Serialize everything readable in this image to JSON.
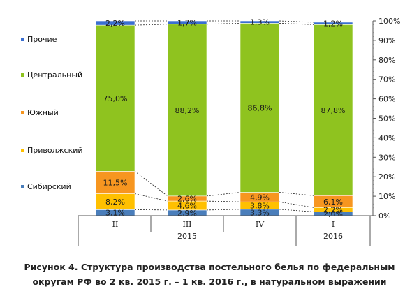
{
  "chart_data": {
    "type": "bar",
    "stacked": true,
    "normalized": true,
    "categories": [
      "II",
      "III",
      "IV",
      "I"
    ],
    "year_groups": [
      {
        "label": "2015",
        "categories": [
          "II",
          "III",
          "IV"
        ]
      },
      {
        "label": "2016",
        "categories": [
          "I"
        ]
      }
    ],
    "series": [
      {
        "name": "Сибирский",
        "color": "#4a7ebb",
        "values": [
          3.1,
          2.9,
          3.3,
          2.0
        ],
        "labels": [
          "3,1%",
          "2,9%",
          "3,3%",
          "2,0%"
        ]
      },
      {
        "name": "Приволжский",
        "color": "#ffc000",
        "values": [
          8.2,
          4.6,
          3.8,
          2.2
        ],
        "labels": [
          "8,2%",
          "4,6%",
          "3,8%",
          "2,2%"
        ]
      },
      {
        "name": "Южный",
        "color": "#f79620",
        "values": [
          11.5,
          2.6,
          4.9,
          6.1
        ],
        "labels": [
          "11,5%",
          "2,6%",
          "4,9%",
          "6,1%"
        ]
      },
      {
        "name": "Центральный",
        "color": "#8fc31f",
        "values": [
          75.0,
          88.2,
          86.8,
          87.8
        ],
        "labels": [
          "75,0%",
          "88,2%",
          "86,8%",
          "87,8%"
        ]
      },
      {
        "name": "Прочие",
        "color": "#3b6fd1",
        "values": [
          2.2,
          1.7,
          1.3,
          1.2
        ],
        "labels": [
          "2,2%",
          "1,7%",
          "1,3%",
          "1,2%"
        ]
      }
    ],
    "legend_order": [
      "Прочие",
      "Центральный",
      "Южный",
      "Приволжский",
      "Сибирский"
    ],
    "y_ticks": [
      "0%",
      "10%",
      "20%",
      "30%",
      "40%",
      "50%",
      "60%",
      "70%",
      "80%",
      "90%",
      "100%"
    ],
    "ylim": [
      0,
      100
    ],
    "y_axis_side": "right",
    "legend_position": "left",
    "grid": false,
    "series_lines": true
  },
  "caption": {
    "line1": "Рисунок 4. Структура производства постельного белья по федеральным",
    "line2": "округам РФ во 2 кв. 2015 г. – 1 кв. 2016 г., в натуральном выражении"
  }
}
